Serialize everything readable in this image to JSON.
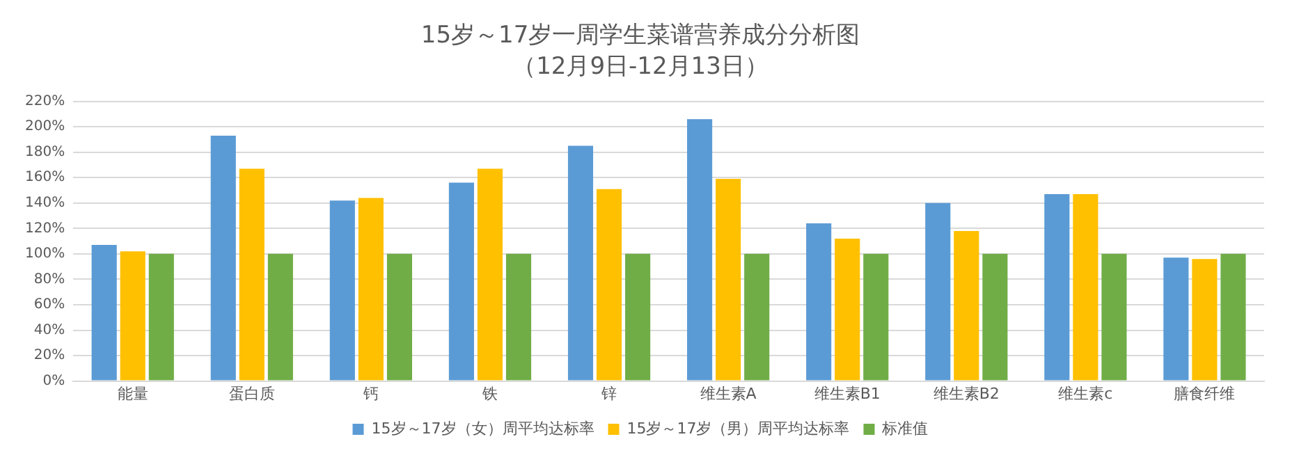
{
  "chart_data": {
    "type": "bar",
    "title": "15岁～17岁一周学生菜谱营养成分分析图",
    "subtitle": "（12月9日-12月13日）",
    "categories": [
      "能量",
      "蛋白质",
      "钙",
      "铁",
      "锌",
      "维生素A",
      "维生素B1",
      "维生素B2",
      "维生素c",
      "膳食纤维"
    ],
    "series": [
      {
        "name": "15岁～17岁（女）周平均达标率",
        "color": "#5b9bd5",
        "values": [
          107,
          193,
          142,
          156,
          185,
          206,
          124,
          140,
          147,
          97
        ]
      },
      {
        "name": "15岁～17岁（男）周平均达标率",
        "color": "#ffc000",
        "values": [
          102,
          167,
          144,
          167,
          151,
          159,
          112,
          118,
          147,
          96
        ]
      },
      {
        "name": "标准值",
        "color": "#70ad47",
        "values": [
          100,
          100,
          100,
          100,
          100,
          100,
          100,
          100,
          100,
          100
        ]
      }
    ],
    "ylim": [
      0,
      220
    ],
    "yticks": [
      {
        "value": 0,
        "label": "0%"
      },
      {
        "value": 20,
        "label": "20%"
      },
      {
        "value": 40,
        "label": "40%"
      },
      {
        "value": 60,
        "label": "60%"
      },
      {
        "value": 80,
        "label": "80%"
      },
      {
        "value": 100,
        "label": "100%"
      },
      {
        "value": 120,
        "label": "120%"
      },
      {
        "value": 140,
        "label": "140%"
      },
      {
        "value": 160,
        "label": "160%"
      },
      {
        "value": 180,
        "label": "180%"
      },
      {
        "value": 200,
        "label": "200%"
      },
      {
        "value": 220,
        "label": "220%"
      }
    ],
    "grid": "y",
    "legend": "bottom"
  }
}
